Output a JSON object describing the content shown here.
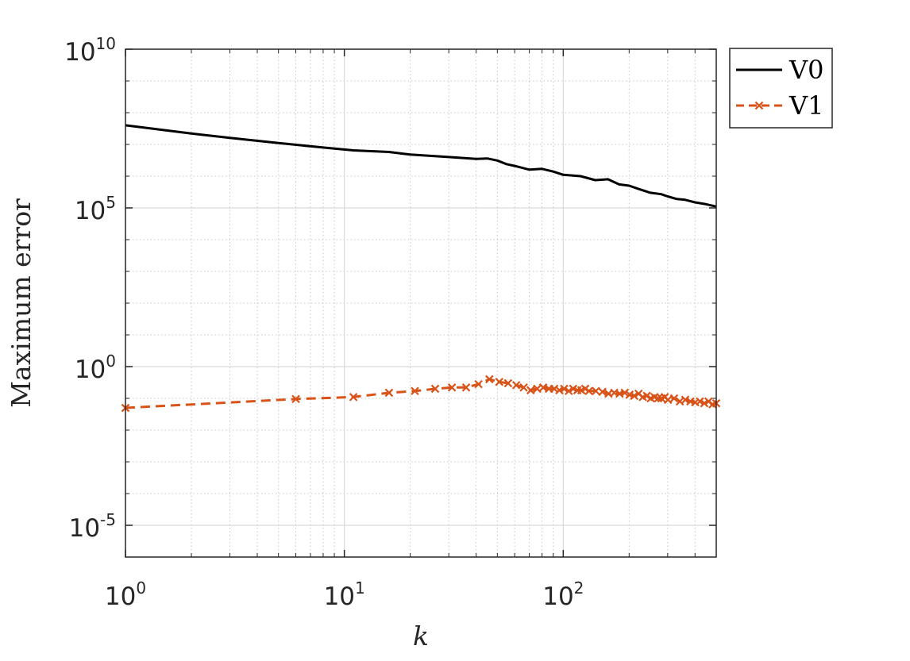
{
  "chart_data": {
    "type": "line",
    "xlabel": "k",
    "ylabel": "Maximum error",
    "xscale": "log",
    "yscale": "log",
    "xlim": [
      1,
      500
    ],
    "ylim": [
      1e-06,
      10000000000.0
    ],
    "grid": true,
    "minor_grid": true,
    "legend_position": "outside-top-right",
    "x_ticks": [
      {
        "value": 1,
        "base": "10",
        "exp": "0"
      },
      {
        "value": 10,
        "base": "10",
        "exp": "1"
      },
      {
        "value": 100,
        "base": "10",
        "exp": "2"
      }
    ],
    "y_ticks": [
      {
        "value": 1e-05,
        "base": "10",
        "exp": "-5"
      },
      {
        "value": 1,
        "base": "10",
        "exp": "0"
      },
      {
        "value": 100000.0,
        "base": "10",
        "exp": "5"
      },
      {
        "value": 10000000000.0,
        "base": "10",
        "exp": "10"
      }
    ],
    "series": [
      {
        "name": "V0",
        "color": "#000000",
        "style": "solid",
        "marker": "none",
        "x": [
          1,
          2,
          3,
          5,
          8,
          11,
          16,
          20,
          30,
          40,
          45,
          50,
          55,
          60,
          70,
          80,
          90,
          100,
          120,
          140,
          160,
          180,
          200,
          220,
          250,
          280,
          300,
          330,
          360,
          400,
          450,
          500
        ],
        "y": [
          40000000.0,
          22000000.0,
          16000000.0,
          11000000.0,
          8000000.0,
          6500000.0,
          5800000.0,
          4800000.0,
          4000000.0,
          3500000.0,
          3600000.0,
          3100000.0,
          2400000.0,
          2100000.0,
          1600000.0,
          1700000.0,
          1400000.0,
          1100000.0,
          1000000.0,
          750000.0,
          800000.0,
          550000.0,
          500000.0,
          400000.0,
          300000.0,
          270000.0,
          230000.0,
          190000.0,
          180000.0,
          150000.0,
          130000.0,
          110000.0
        ]
      },
      {
        "name": "V1",
        "color": "#D95319",
        "style": "dashed",
        "marker": "x",
        "x": [
          1,
          6,
          11,
          16,
          21,
          26,
          31,
          36,
          41,
          46,
          51,
          56,
          61,
          66,
          71,
          76,
          81,
          86,
          91,
          96,
          101,
          106,
          111,
          116,
          121,
          126,
          131,
          141,
          151,
          161,
          171,
          181,
          191,
          201,
          211,
          221,
          231,
          241,
          251,
          261,
          271,
          281,
          291,
          301,
          321,
          341,
          361,
          381,
          401,
          421,
          441,
          461,
          481,
          500
        ],
        "y": [
          0.05,
          0.095,
          0.11,
          0.15,
          0.17,
          0.2,
          0.22,
          0.22,
          0.28,
          0.4,
          0.33,
          0.3,
          0.26,
          0.22,
          0.18,
          0.2,
          0.22,
          0.2,
          0.2,
          0.18,
          0.2,
          0.17,
          0.2,
          0.18,
          0.18,
          0.2,
          0.17,
          0.17,
          0.16,
          0.14,
          0.15,
          0.14,
          0.15,
          0.13,
          0.12,
          0.14,
          0.11,
          0.12,
          0.1,
          0.11,
          0.1,
          0.1,
          0.11,
          0.09,
          0.1,
          0.08,
          0.09,
          0.08,
          0.075,
          0.08,
          0.07,
          0.08,
          0.065,
          0.07
        ]
      }
    ]
  }
}
